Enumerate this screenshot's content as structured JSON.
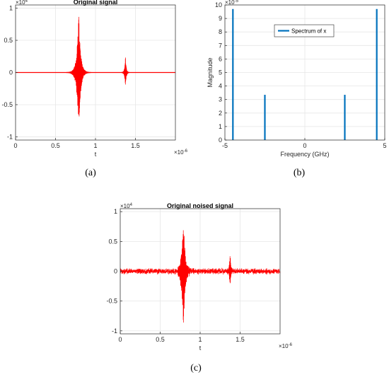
{
  "chart_data": [
    {
      "id": "a",
      "type": "line",
      "title": "Original signal",
      "xlabel": "t",
      "ylabel": "",
      "x_exponent_base": "×10",
      "x_exponent": "-6",
      "y_exponent_base": "×10",
      "y_exponent": "4",
      "xlim": [
        0,
        2.0
      ],
      "ylim": [
        -1.05,
        1.05
      ],
      "x_ticks": [
        "0",
        "0.5",
        "1",
        "1.5"
      ],
      "x_tick_values": [
        0,
        0.5,
        1,
        1.5
      ],
      "y_ticks": [
        "1",
        "0.5",
        "0",
        "-0.5",
        "-1"
      ],
      "y_tick_values": [
        1,
        0.5,
        0,
        -0.5,
        -1
      ],
      "grid": true,
      "line_color": "#ff0000",
      "noise_level": 0,
      "bursts": [
        {
          "center": 0.79,
          "amp_pos": 0.95,
          "amp_neg": 0.97,
          "width": 0.05
        },
        {
          "center": 1.375,
          "amp_pos": 0.28,
          "amp_neg": 0.27,
          "width": 0.02
        }
      ],
      "caption": "(a)"
    },
    {
      "id": "b",
      "type": "bar",
      "title": "",
      "xlabel": "Frequency (GHz)",
      "ylabel": "Magnitude",
      "y_exponent_base": "×10",
      "y_exponent": "-5",
      "xlim": [
        -5,
        5
      ],
      "ylim": [
        0,
        10
      ],
      "x_ticks": [
        "-5",
        "0",
        "5"
      ],
      "x_tick_values": [
        -5,
        0,
        5
      ],
      "y_ticks": [
        "10",
        "9",
        "8",
        "7",
        "6",
        "5",
        "4",
        "3",
        "2",
        "1",
        "0"
      ],
      "y_tick_values": [
        10,
        9,
        8,
        7,
        6,
        5,
        4,
        3,
        2,
        1,
        0
      ],
      "grid": true,
      "legend": "Spectrum of x",
      "legend_position": "top-center",
      "line_color": "#0072bd",
      "x": [
        -4.5,
        -2.5,
        2.5,
        4.5
      ],
      "values": [
        9.7,
        3.35,
        3.35,
        9.7
      ],
      "caption": "(b)"
    },
    {
      "id": "c",
      "type": "line",
      "title": "Original noised signal",
      "xlabel": "t",
      "ylabel": "",
      "x_exponent_base": "×10",
      "x_exponent": "-6",
      "y_exponent_base": "×10",
      "y_exponent": "4",
      "xlim": [
        0,
        2.0
      ],
      "ylim": [
        -1.05,
        1.05
      ],
      "x_ticks": [
        "0",
        "0.5",
        "1",
        "1.5"
      ],
      "x_tick_values": [
        0,
        0.5,
        1,
        1.5
      ],
      "y_ticks": [
        "1",
        "0.5",
        "0",
        "-0.5",
        "-1"
      ],
      "y_tick_values": [
        1,
        0.5,
        0,
        -0.5,
        -1
      ],
      "grid": true,
      "line_color": "#ff0000",
      "noise_level": 0.04,
      "bursts": [
        {
          "center": 0.79,
          "amp_pos": 0.95,
          "amp_neg": 0.97,
          "width": 0.05
        },
        {
          "center": 1.375,
          "amp_pos": 0.33,
          "amp_neg": 0.3,
          "width": 0.02
        }
      ],
      "caption": "(c)"
    }
  ]
}
